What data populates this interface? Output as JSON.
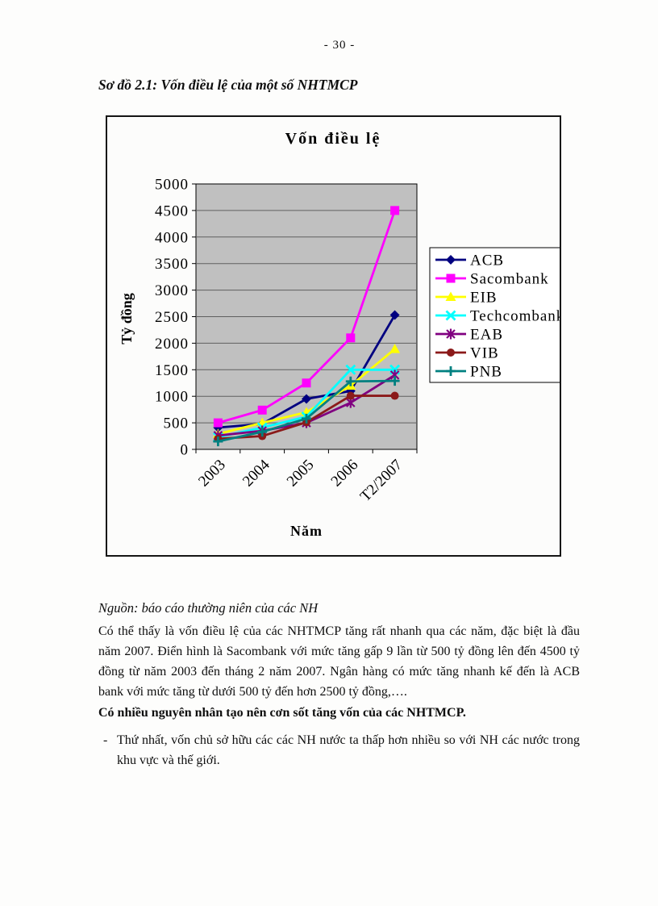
{
  "page": {
    "number": "- 30 -",
    "heading": "Sơ đồ 2.1: Vốn điều lệ của một số NHTMCP",
    "source_note": "Nguồn: báo cáo thường niên của các NH",
    "paragraph": "Có thể thấy là vốn điều lệ của các NHTMCP tăng rất nhanh qua các năm, đặc biệt là đầu năm 2007. Điển hình là Sacombank với mức tăng gấp 9 lần từ 500 tỷ đồng lên đến 4500 tỷ đồng từ năm 2003 đến tháng 2 năm 2007. Ngân hàng có mức tăng nhanh kế đến là ACB bank với mức tăng từ dưới 500 tỷ đến hơn 2500 tỷ đồng,….",
    "emphasis_line": "Có nhiều nguyên nhân tạo nên cơn sốt tăng vốn của các NHTMCP.",
    "bullet": {
      "marker": "-",
      "text": "Thứ nhất, vốn chủ sở hữu các các NH nước ta thấp hơn nhiều so với NH các nước trong khu vực và thế giới."
    }
  },
  "chart_data": {
    "type": "line",
    "title": "Vốn điều lệ",
    "xlabel": "Năm",
    "ylabel": "Tỷ đồng",
    "categories": [
      "2003",
      "2004",
      "2005",
      "2006",
      "T2/2007"
    ],
    "ylim": [
      0,
      5000
    ],
    "ytick_step": 500,
    "grid": true,
    "plot_bg_color": "#c0c0c0",
    "grid_color": "#5f5f5f",
    "legend_position": "right",
    "series": [
      {
        "name": "ACB",
        "color": "#000080",
        "marker": "diamond",
        "values": [
          410,
          480,
          950,
          1100,
          2530
        ]
      },
      {
        "name": "Sacombank",
        "color": "#ff00ff",
        "marker": "square",
        "values": [
          500,
          740,
          1250,
          2100,
          4500
        ]
      },
      {
        "name": "EIB",
        "color": "#ffff00",
        "marker": "triangle",
        "values": [
          290,
          500,
          700,
          1200,
          1890
        ]
      },
      {
        "name": "Techcombank",
        "color": "#00ffff",
        "marker": "x",
        "values": [
          230,
          410,
          615,
          1500,
          1500
        ]
      },
      {
        "name": "EAB",
        "color": "#800080",
        "marker": "star",
        "values": [
          260,
          350,
          500,
          880,
          1400
        ]
      },
      {
        "name": "VIB",
        "color": "#8b1a1a",
        "marker": "circle",
        "values": [
          200,
          250,
          510,
          1010,
          1010
        ]
      },
      {
        "name": "PNB",
        "color": "#008080",
        "marker": "plus",
        "values": [
          150,
          330,
          580,
          1280,
          1290
        ]
      }
    ]
  }
}
